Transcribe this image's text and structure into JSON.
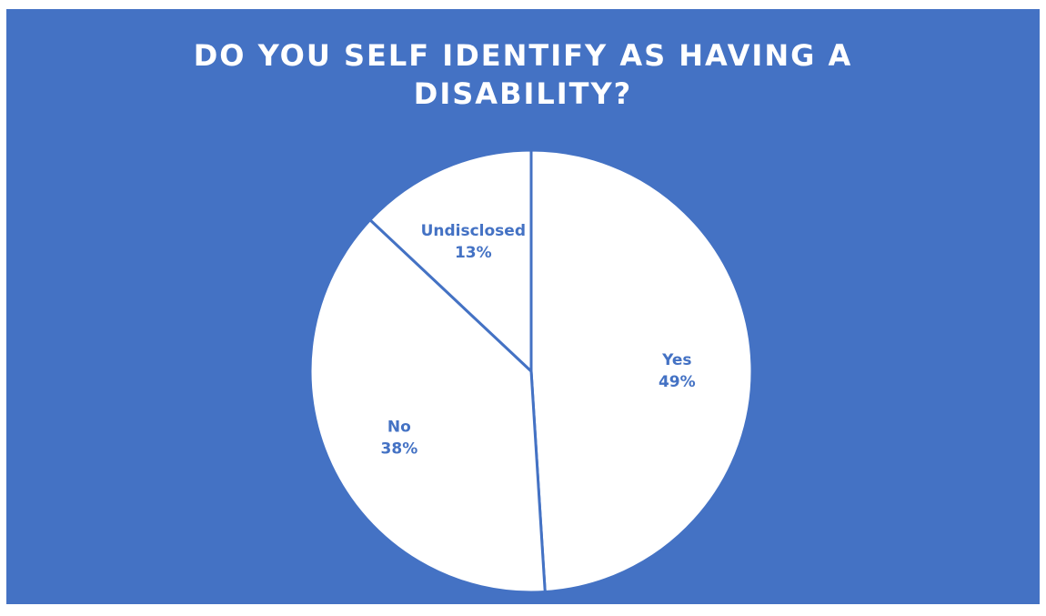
{
  "chart_data": {
    "type": "pie",
    "title_lines": [
      "DO YOU SELF IDENTIFY AS HAVING A",
      "DISABILITY?"
    ],
    "slices": [
      {
        "category": "Yes",
        "value": 49,
        "label": "49%"
      },
      {
        "category": "No",
        "value": 38,
        "label": "38%"
      },
      {
        "category": "Undisclosed",
        "value": 13,
        "label": "13%"
      }
    ],
    "legend": "none",
    "colors": {
      "background": "#4472C4",
      "slice_fill": "#FFFFFF",
      "slice_border": "#4472C4",
      "label_text": "#4472C4",
      "title_text": "#FFFFFF"
    }
  }
}
